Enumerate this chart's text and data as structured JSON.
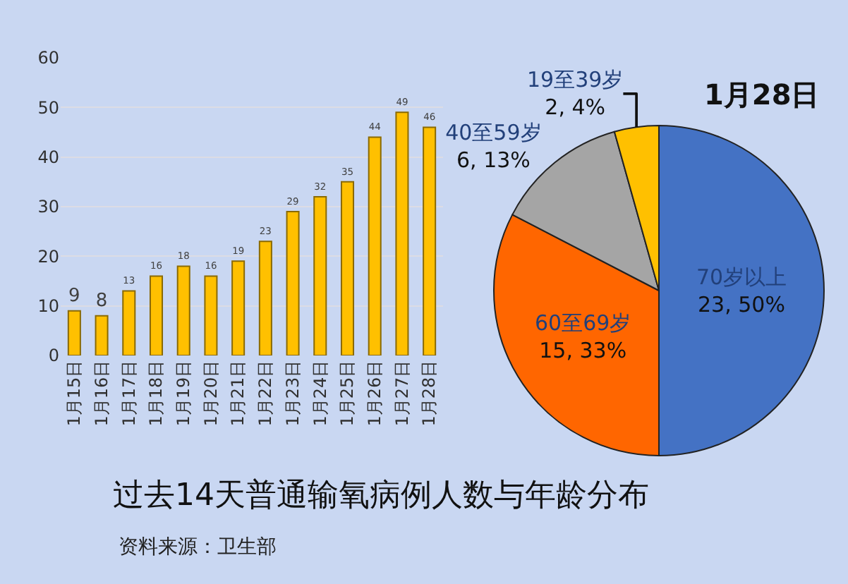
{
  "chart_data": [
    {
      "type": "bar",
      "title": "过去14天普通输氧病例人数与年龄分布",
      "annotations": [
        "资料来源：卫生部"
      ],
      "categories": [
        "1月15日",
        "1月16日",
        "1月17日",
        "1月18日",
        "1月19日",
        "1月20日",
        "1月21日",
        "1月22日",
        "1月23日",
        "1月24日",
        "1月25日",
        "1月26日",
        "1月27日",
        "1月28日"
      ],
      "values": [
        9,
        8,
        13,
        16,
        18,
        16,
        19,
        23,
        29,
        32,
        35,
        44,
        49,
        46
      ],
      "color": "#ffc000",
      "ylim": [
        0,
        60
      ],
      "yticks": [
        0,
        10,
        20,
        30,
        40,
        50,
        60
      ],
      "grid": "y",
      "data_labels": true
    },
    {
      "type": "pie",
      "title": "1月28日",
      "categories": [
        "70岁以上",
        "60至69岁",
        "40至59岁",
        "19至39岁"
      ],
      "values": [
        23,
        15,
        6,
        2
      ],
      "colors": [
        "#4472c4",
        "#ff6600",
        "#a5a5a5",
        "#ffc000"
      ],
      "value_labels": [
        "23, 50%",
        "15, 33%",
        "6, 13%",
        "2, 4%"
      ]
    }
  ]
}
